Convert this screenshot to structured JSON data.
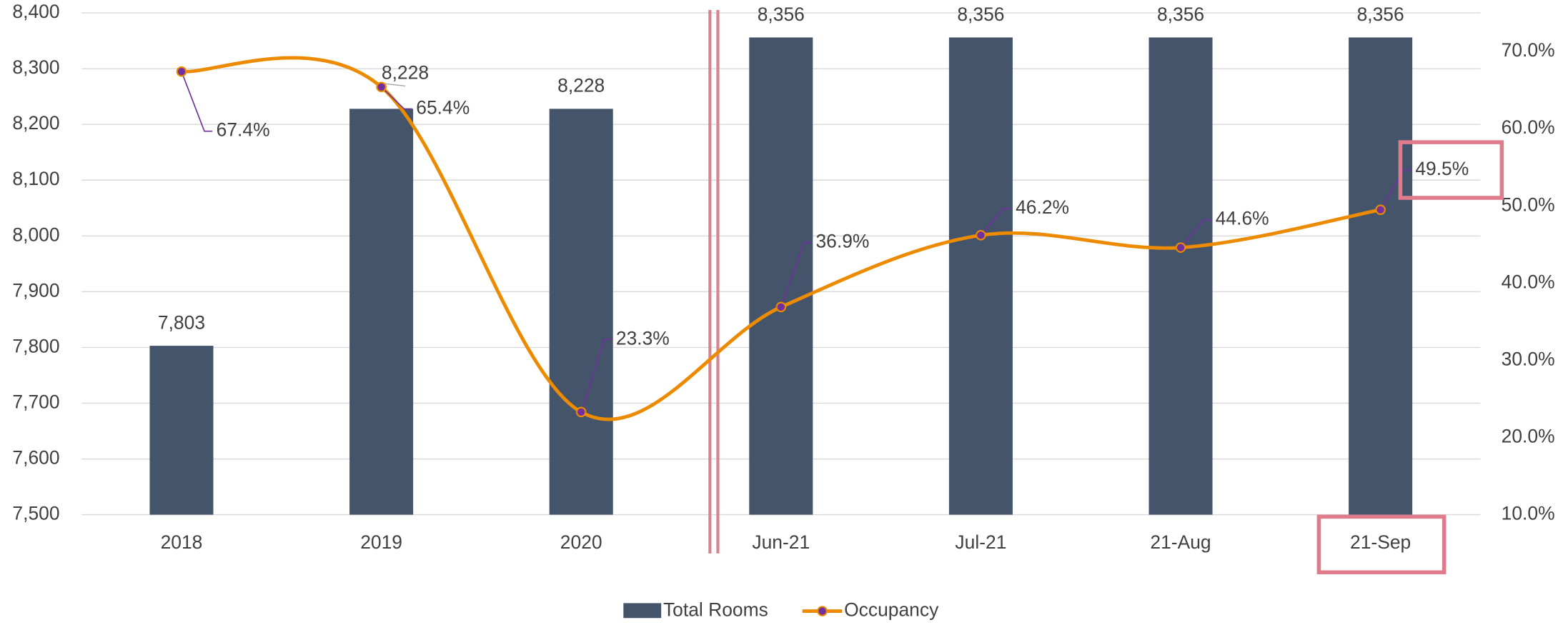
{
  "chart_data": {
    "type": "bar-line",
    "categories": [
      "2018",
      "2019",
      "2020",
      "Jun-21",
      "Jul-21",
      "21-Aug",
      "21-Sep"
    ],
    "series": [
      {
        "name": "Total Rooms",
        "type": "bar",
        "color": "#44546a",
        "values": [
          7803,
          8228,
          8228,
          8356,
          8356,
          8356,
          8356
        ],
        "value_labels": [
          "7,803",
          "8,228",
          "8,228",
          "8,356",
          "8,356",
          "8,356",
          "8,356"
        ]
      },
      {
        "name": "Occupancy",
        "type": "line",
        "axis": "y2",
        "color": "#ed8b00",
        "marker_color": "#7030a0",
        "values": [
          67.4,
          65.4,
          23.3,
          36.9,
          46.2,
          44.6,
          49.5
        ],
        "value_labels": [
          "67.4%",
          "65.4%",
          "23.3%",
          "36.9%",
          "46.2%",
          "44.6%",
          "49.5%"
        ]
      }
    ],
    "ylim": [
      7500,
      8400
    ],
    "yticks": [
      {
        "value": 7500,
        "label": "7,500"
      },
      {
        "value": 7600,
        "label": "7,600"
      },
      {
        "value": 7700,
        "label": "7,700"
      },
      {
        "value": 7800,
        "label": "7,800"
      },
      {
        "value": 7900,
        "label": "7,900"
      },
      {
        "value": 8000,
        "label": "8,000"
      },
      {
        "value": 8100,
        "label": "8,100"
      },
      {
        "value": 8200,
        "label": "8,200"
      },
      {
        "value": 8300,
        "label": "8,300"
      },
      {
        "value": 8400,
        "label": "8,400"
      }
    ],
    "y2lim": [
      10,
      75
    ],
    "y2ticks": [
      {
        "value": 10,
        "label": "10.0%"
      },
      {
        "value": 20,
        "label": "20.0%"
      },
      {
        "value": 30,
        "label": "30.0%"
      },
      {
        "value": 40,
        "label": "40.0%"
      },
      {
        "value": 50,
        "label": "50.0%"
      },
      {
        "value": 60,
        "label": "60.0%"
      },
      {
        "value": 70,
        "label": "70.0%"
      }
    ],
    "grid": true,
    "legend": "bottom"
  }
}
